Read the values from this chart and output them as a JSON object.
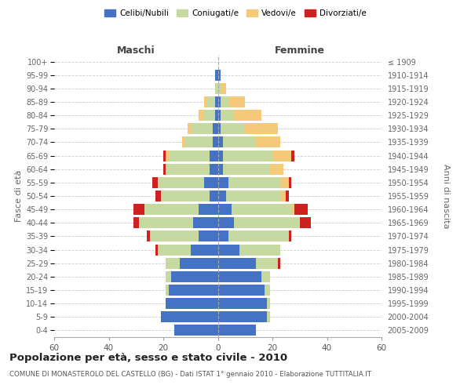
{
  "age_groups": [
    "0-4",
    "5-9",
    "10-14",
    "15-19",
    "20-24",
    "25-29",
    "30-34",
    "35-39",
    "40-44",
    "45-49",
    "50-54",
    "55-59",
    "60-64",
    "65-69",
    "70-74",
    "75-79",
    "80-84",
    "85-89",
    "90-94",
    "95-99",
    "100+"
  ],
  "birth_years": [
    "2005-2009",
    "2000-2004",
    "1995-1999",
    "1990-1994",
    "1985-1989",
    "1980-1984",
    "1975-1979",
    "1970-1974",
    "1965-1969",
    "1960-1964",
    "1955-1959",
    "1950-1954",
    "1945-1949",
    "1940-1944",
    "1935-1939",
    "1930-1934",
    "1925-1929",
    "1920-1924",
    "1915-1919",
    "1910-1914",
    "≤ 1909"
  ],
  "maschi": {
    "celibi": [
      16,
      21,
      19,
      18,
      17,
      14,
      10,
      7,
      9,
      7,
      3,
      5,
      3,
      3,
      2,
      2,
      1,
      1,
      0,
      1,
      0
    ],
    "coniugati": [
      0,
      0,
      0,
      1,
      2,
      5,
      12,
      18,
      20,
      20,
      18,
      17,
      16,
      15,
      10,
      8,
      4,
      3,
      1,
      0,
      0
    ],
    "vedovi": [
      0,
      0,
      0,
      0,
      0,
      0,
      0,
      0,
      0,
      0,
      0,
      0,
      0,
      1,
      1,
      1,
      2,
      1,
      0,
      0,
      0
    ],
    "divorziati": [
      0,
      0,
      0,
      0,
      0,
      0,
      1,
      1,
      2,
      4,
      2,
      2,
      1,
      1,
      0,
      0,
      0,
      0,
      0,
      0,
      0
    ]
  },
  "femmine": {
    "nubili": [
      14,
      18,
      18,
      17,
      16,
      14,
      8,
      4,
      6,
      5,
      3,
      4,
      2,
      2,
      2,
      1,
      1,
      1,
      0,
      1,
      0
    ],
    "coniugate": [
      0,
      1,
      1,
      2,
      3,
      8,
      15,
      22,
      24,
      22,
      20,
      19,
      17,
      18,
      12,
      9,
      5,
      3,
      1,
      0,
      0
    ],
    "vedove": [
      0,
      0,
      0,
      0,
      0,
      0,
      0,
      0,
      0,
      1,
      2,
      3,
      5,
      7,
      9,
      12,
      10,
      6,
      2,
      0,
      0
    ],
    "divorziate": [
      0,
      0,
      0,
      0,
      0,
      1,
      0,
      1,
      4,
      5,
      1,
      1,
      0,
      1,
      0,
      0,
      0,
      0,
      0,
      0,
      0
    ]
  },
  "colors": {
    "celibi_nubili": "#4472C4",
    "coniugati_e": "#C5D9A0",
    "vedovi_e": "#F5C97A",
    "divorziati_e": "#CC2222"
  },
  "xlim": 60,
  "title": "Popolazione per età, sesso e stato civile - 2010",
  "subtitle": "COMUNE DI MONASTEROLO DEL CASTELLO (BG) - Dati ISTAT 1° gennaio 2010 - Elaborazione TUTTITALIA.IT",
  "ylabel_left": "Fasce di età",
  "ylabel_right": "Anni di nascita",
  "xlabel_maschi": "Maschi",
  "xlabel_femmine": "Femmine",
  "legend_labels": [
    "Celibi/Nubili",
    "Coniugati/e",
    "Vedovi/e",
    "Divorziati/e"
  ],
  "bg_color": "#FFFFFF",
  "grid_color": "#CCCCCC"
}
